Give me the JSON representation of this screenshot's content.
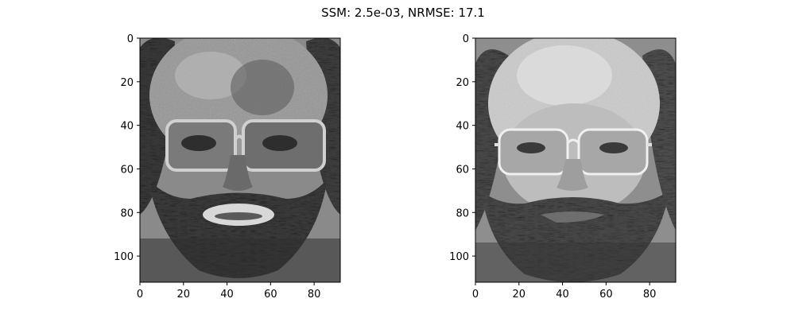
{
  "figure": {
    "title": "SSM: 2.5e-03, NRMSE: 17.1"
  },
  "panels": [
    {
      "id": "left",
      "image_description_key": "reconstructed-face",
      "tone": "reconstruction",
      "xticks": [
        "0",
        "20",
        "40",
        "60",
        "80"
      ],
      "yticks": [
        "0",
        "20",
        "40",
        "60",
        "80",
        "100"
      ],
      "xlim": [
        0,
        92
      ],
      "ylim": [
        112,
        0
      ]
    },
    {
      "id": "right",
      "image_description_key": "original-face",
      "tone": "original",
      "xticks": [
        "0",
        "20",
        "40",
        "60",
        "80"
      ],
      "yticks": [
        "0",
        "20",
        "40",
        "60",
        "80",
        "100"
      ],
      "xlim": [
        0,
        92
      ],
      "ylim": [
        112,
        0
      ]
    }
  ],
  "colors": {
    "background": "#ffffff",
    "axis": "#000000",
    "gray_mid": "#7f7f7f"
  }
}
